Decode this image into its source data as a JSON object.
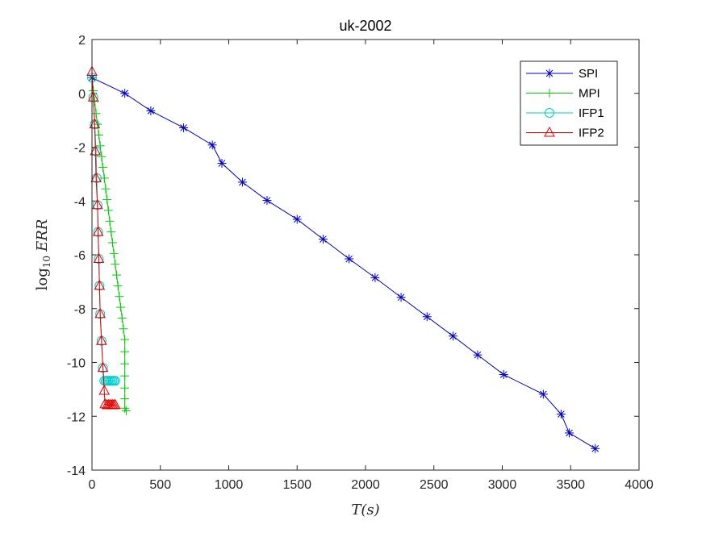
{
  "chart_data": {
    "type": "line",
    "title": "uk-2002",
    "xlabel": "T(s)",
    "ylabel_base": "log",
    "ylabel_sub": "10",
    "ylabel_var": "ERR",
    "xlim": [
      0,
      4000
    ],
    "ylim": [
      -14,
      2
    ],
    "xticks": [
      0,
      500,
      1000,
      1500,
      2000,
      2500,
      3000,
      3500,
      4000
    ],
    "yticks": [
      -14,
      -12,
      -10,
      -8,
      -6,
      -4,
      -2,
      0,
      2
    ],
    "grid": false,
    "legend_position": "top-right",
    "series": [
      {
        "name": "SPI",
        "color": "#0000cc",
        "marker": "asterisk",
        "points": [
          [
            0,
            0.58
          ],
          [
            240,
            0.0
          ],
          [
            430,
            -0.65
          ],
          [
            670,
            -1.28
          ],
          [
            880,
            -1.92
          ],
          [
            950,
            -2.6
          ],
          [
            1100,
            -3.3
          ],
          [
            1280,
            -3.98
          ],
          [
            1500,
            -4.68
          ],
          [
            1690,
            -5.42
          ],
          [
            1880,
            -6.15
          ],
          [
            2070,
            -6.85
          ],
          [
            2260,
            -7.58
          ],
          [
            2450,
            -8.3
          ],
          [
            2640,
            -9.02
          ],
          [
            2820,
            -9.72
          ],
          [
            3010,
            -10.45
          ],
          [
            3300,
            -11.18
          ],
          [
            3430,
            -11.92
          ],
          [
            3490,
            -12.62
          ],
          [
            3680,
            -13.2
          ]
        ]
      },
      {
        "name": "MPI",
        "color": "#00cc00",
        "marker": "plus",
        "points": [
          [
            0,
            0.58
          ],
          [
            10,
            0.1
          ],
          [
            20,
            -0.3
          ],
          [
            30,
            -0.75
          ],
          [
            40,
            -1.15
          ],
          [
            50,
            -1.55
          ],
          [
            60,
            -1.95
          ],
          [
            70,
            -2.35
          ],
          [
            80,
            -2.75
          ],
          [
            90,
            -3.15
          ],
          [
            100,
            -3.55
          ],
          [
            110,
            -3.95
          ],
          [
            120,
            -4.35
          ],
          [
            130,
            -4.75
          ],
          [
            140,
            -5.15
          ],
          [
            150,
            -5.55
          ],
          [
            160,
            -5.95
          ],
          [
            170,
            -6.35
          ],
          [
            180,
            -6.75
          ],
          [
            190,
            -7.15
          ],
          [
            200,
            -7.55
          ],
          [
            210,
            -7.95
          ],
          [
            220,
            -8.35
          ],
          [
            230,
            -8.75
          ],
          [
            240,
            -9.15
          ],
          [
            240,
            -9.6
          ],
          [
            240,
            -10.05
          ],
          [
            240,
            -10.5
          ],
          [
            240,
            -10.95
          ],
          [
            240,
            -11.35
          ],
          [
            240,
            -11.7
          ],
          [
            250,
            -11.8
          ]
        ]
      },
      {
        "name": "IFP1",
        "color": "#00cccc",
        "marker": "circle",
        "points": [
          [
            0,
            0.58
          ],
          [
            10,
            -0.15
          ],
          [
            20,
            -1.15
          ],
          [
            30,
            -2.15
          ],
          [
            35,
            -3.15
          ],
          [
            40,
            -4.15
          ],
          [
            45,
            -5.15
          ],
          [
            50,
            -6.15
          ],
          [
            55,
            -7.15
          ],
          [
            60,
            -8.2
          ],
          [
            70,
            -9.2
          ],
          [
            80,
            -10.2
          ],
          [
            90,
            -10.68
          ],
          [
            100,
            -10.68
          ],
          [
            110,
            -10.68
          ],
          [
            120,
            -10.68
          ],
          [
            130,
            -10.68
          ],
          [
            140,
            -10.68
          ],
          [
            150,
            -10.68
          ],
          [
            160,
            -10.68
          ],
          [
            170,
            -10.68
          ]
        ]
      },
      {
        "name": "IFP2",
        "color": "#e00000",
        "marker": "triangle",
        "points": [
          [
            0,
            0.8
          ],
          [
            10,
            -0.15
          ],
          [
            20,
            -1.15
          ],
          [
            25,
            -2.15
          ],
          [
            30,
            -3.15
          ],
          [
            40,
            -4.15
          ],
          [
            45,
            -5.15
          ],
          [
            50,
            -6.15
          ],
          [
            55,
            -7.15
          ],
          [
            60,
            -8.2
          ],
          [
            70,
            -9.2
          ],
          [
            80,
            -10.2
          ],
          [
            90,
            -11.05
          ],
          [
            95,
            -11.55
          ],
          [
            110,
            -11.58
          ],
          [
            120,
            -11.58
          ],
          [
            130,
            -11.58
          ],
          [
            140,
            -11.58
          ],
          [
            150,
            -11.58
          ],
          [
            160,
            -11.58
          ],
          [
            170,
            -11.58
          ]
        ]
      }
    ]
  }
}
